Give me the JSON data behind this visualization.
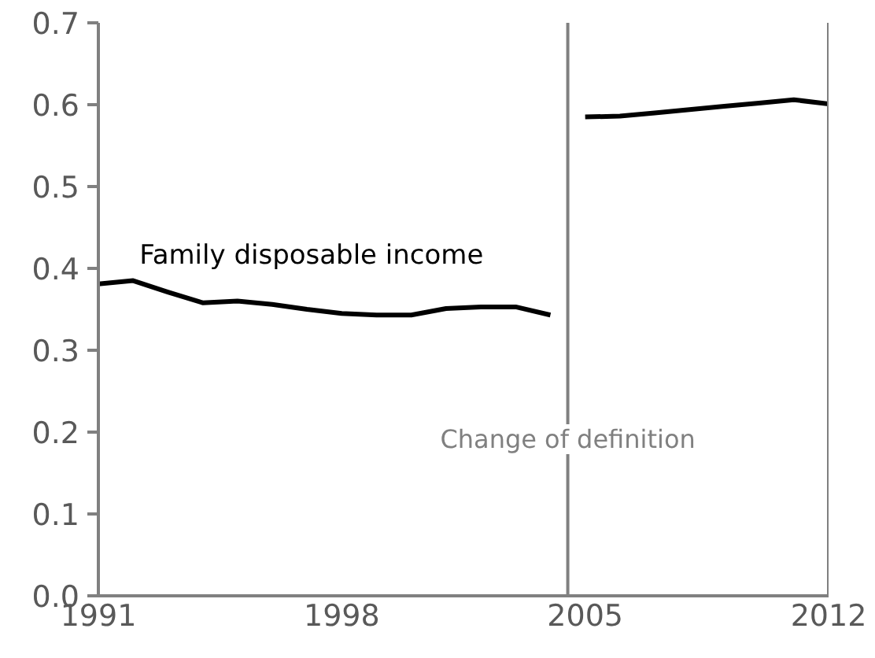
{
  "chart_data": {
    "type": "line",
    "series": [
      {
        "name": "Family disposable income",
        "color": "#000000",
        "x": [
          1991,
          1992,
          1993,
          1994,
          1995,
          1996,
          1997,
          1998,
          1999,
          2000,
          2001,
          2002,
          2003,
          2004
        ],
        "values": [
          0.381,
          0.385,
          0.371,
          0.358,
          0.36,
          0.356,
          0.35,
          0.345,
          0.343,
          0.343,
          0.351,
          0.353,
          0.353,
          0.343
        ]
      },
      {
        "color": "#000000",
        "x": [
          2005,
          2006,
          2007,
          2008,
          2009,
          2010,
          2011,
          2012
        ],
        "values": [
          0.585,
          0.586,
          0.59,
          0.594,
          0.598,
          0.602,
          0.606,
          0.601
        ]
      }
    ],
    "xlim": [
      1991,
      2012
    ],
    "xticks": [
      1991,
      1998,
      2005,
      2012
    ],
    "ylim": [
      0,
      0.7
    ],
    "yticks": [
      {
        "value": 0,
        "label": "0.0"
      },
      0.1,
      0.2,
      0.3,
      0.4,
      0.5,
      0.6,
      0.7
    ],
    "ref_lines": [
      {
        "axis": "x",
        "value": 2004.5,
        "label": "Change of definition",
        "color": "#808080"
      },
      {
        "axis": "x",
        "value": 2012,
        "color": "#808080"
      }
    ],
    "grid": false,
    "marker": "none",
    "line_style": "solid"
  }
}
